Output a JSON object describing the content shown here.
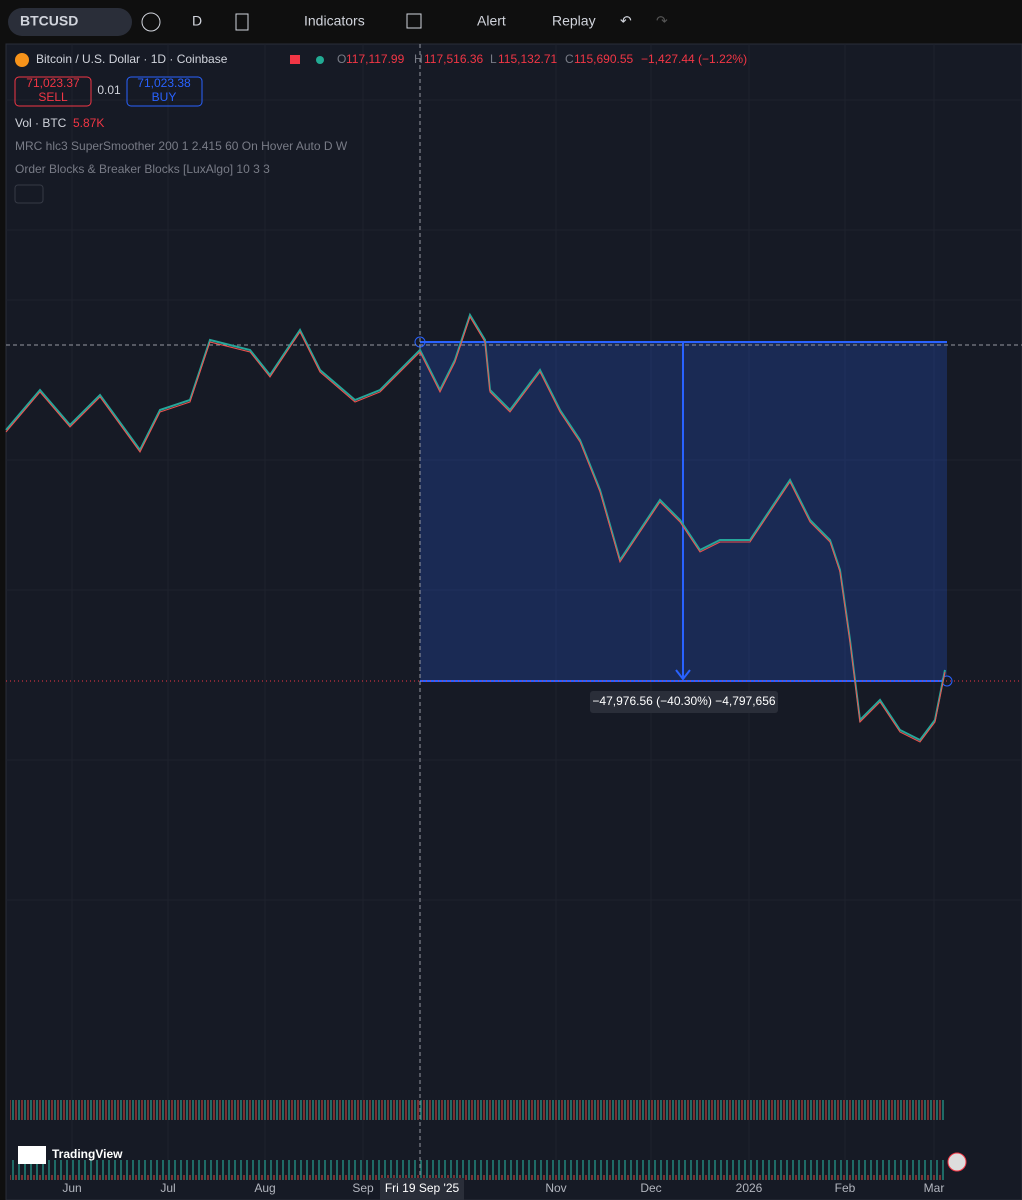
{
  "toolbar": {
    "symbol": "BTCUSD",
    "interval": "D",
    "buttons": [
      "Indicators",
      "Alert",
      "Replay"
    ]
  },
  "legend": {
    "title": "Bitcoin / U.S. Dollar · 1D · Coinbase",
    "ohlc": [
      {
        "label": "O",
        "value": "117,117.99"
      },
      {
        "label": "H",
        "value": "117,516.36"
      },
      {
        "label": "L",
        "value": "115,132.71"
      },
      {
        "label": "C",
        "value": "115,690.55"
      }
    ],
    "change": "−1,427.44 (−1.22%)"
  },
  "trade": {
    "sell_price": "71,023.37",
    "sell": "SELL",
    "spread": "0.01",
    "buy_price": "71,023.38",
    "buy": "BUY"
  },
  "indicators": [
    {
      "name": "Vol · BTC",
      "value": "5.87K"
    },
    {
      "name": "MRC hlc3 SuperSmoother 200 1 2.415 60 On Hover Auto D W"
    },
    {
      "name": "Order Blocks & Breaker Blocks [LuxAlgo] 10 3 3"
    }
  ],
  "measure_label": "−47,976.56 (−40.30%) −4,797,656",
  "time_axis": {
    "labels": [
      "Jun",
      "Jul",
      "Aug",
      "Sep",
      "Nov",
      "Dec",
      "2026",
      "Feb",
      "Mar"
    ],
    "crosshair": "Fri 19 Sep '25"
  },
  "watermark": "TradingView"
}
